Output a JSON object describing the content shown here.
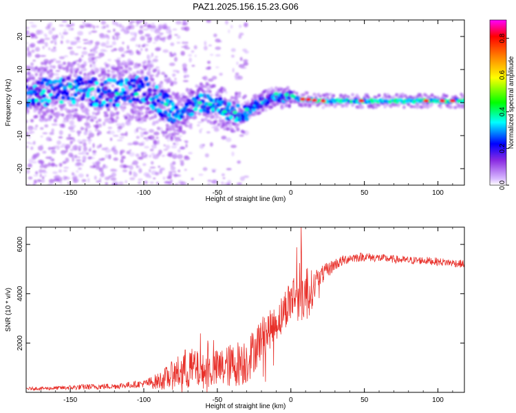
{
  "title": "PAZ1.2025.156.15.23.G06",
  "chart_data": [
    {
      "type": "heatmap",
      "xlabel": "Height of straight line (km)",
      "ylabel": "Frequency (Hz)",
      "xlim": [
        -180,
        118
      ],
      "ylim": [
        -25,
        25
      ],
      "xticks": [
        -150,
        -100,
        -50,
        0,
        50,
        100
      ],
      "yticks": [
        -20,
        -10,
        0,
        10,
        20
      ],
      "colorbar": {
        "label": "Normalized spectral amplitude",
        "range": [
          0.0,
          0.9
        ],
        "ticks": [
          "0.0",
          "0.2",
          "0.4",
          "0.6",
          "0.8"
        ],
        "colors": [
          "#ffffff",
          "#d8b8ff",
          "#8a2be2",
          "#0000ff",
          "#00ffff",
          "#00ff00",
          "#ffff00",
          "#ff8000",
          "#ff0000",
          "#ff00ff"
        ]
      },
      "ridge": {
        "description_points_x": [
          -170,
          -150,
          -130,
          -110,
          -100,
          -90,
          -80,
          -70,
          -60,
          -50,
          -40,
          -30,
          -25,
          -20,
          -15,
          -10,
          -5,
          0,
          5,
          10,
          20,
          50,
          80,
          100,
          118
        ],
        "description_points_y": [
          3,
          4,
          3,
          3,
          4,
          1,
          -3,
          -2,
          0,
          -1,
          -3,
          -3,
          -1,
          0,
          1,
          2,
          1,
          2,
          1,
          1,
          0.5,
          0.5,
          0.5,
          0.5,
          0.5
        ]
      }
    },
    {
      "type": "line",
      "xlabel": "Height of straight line (km)",
      "ylabel": "SNR (10 * v/v)",
      "xlim": [
        -180,
        118
      ],
      "ylim": [
        0,
        6700
      ],
      "xticks": [
        -150,
        -100,
        -50,
        0,
        50,
        100
      ],
      "yticks": [
        2000,
        4000,
        6000
      ],
      "color": "#e8302a",
      "x": [
        -180,
        -160,
        -140,
        -120,
        -100,
        -90,
        -80,
        -70,
        -60,
        -50,
        -40,
        -30,
        -25,
        -20,
        -15,
        -10,
        -5,
        0,
        5,
        10,
        15,
        20,
        30,
        40,
        50,
        60,
        70,
        80,
        90,
        100,
        110,
        118
      ],
      "y": [
        150,
        170,
        220,
        250,
        350,
        450,
        700,
        1000,
        850,
        950,
        1100,
        1300,
        1700,
        2200,
        2500,
        2800,
        3300,
        3800,
        4100,
        4000,
        4200,
        4700,
        5200,
        5450,
        5500,
        5450,
        5400,
        5350,
        5350,
        5300,
        5250,
        5200
      ],
      "noise": [
        60,
        80,
        120,
        120,
        150,
        350,
        600,
        900,
        700,
        800,
        900,
        1000,
        900,
        900,
        800,
        700,
        800,
        900,
        1200,
        1300,
        700,
        400,
        250,
        200,
        180,
        170,
        160,
        160,
        160,
        160,
        160,
        160
      ]
    }
  ]
}
